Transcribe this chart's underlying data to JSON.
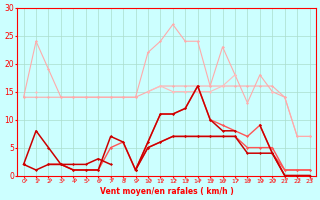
{
  "xlabel": "Vent moyen/en rafales ( km/h )",
  "x": [
    0,
    1,
    2,
    3,
    4,
    5,
    6,
    7,
    8,
    9,
    10,
    11,
    12,
    13,
    14,
    15,
    16,
    17,
    18,
    19,
    20,
    21,
    22,
    23
  ],
  "series": [
    {
      "name": "light_rafales_1",
      "color": "#ffaaaa",
      "lw": 0.8,
      "y": [
        14,
        24,
        19,
        14,
        14,
        14,
        14,
        14,
        14,
        14,
        22,
        24,
        27,
        24,
        24,
        16,
        23,
        18,
        13,
        18,
        15,
        14,
        7,
        7
      ]
    },
    {
      "name": "light_moyen_1",
      "color": "#ffaaaa",
      "lw": 0.8,
      "y": [
        14,
        14,
        14,
        14,
        14,
        14,
        14,
        14,
        14,
        14,
        15,
        16,
        16,
        16,
        16,
        16,
        16,
        16,
        16,
        16,
        16,
        14,
        7,
        7
      ]
    },
    {
      "name": "light_rafales_2",
      "color": "#ffbbbb",
      "lw": 0.8,
      "y": [
        null,
        15,
        null,
        2,
        2,
        null,
        null,
        null,
        null,
        null,
        15,
        16,
        15,
        15,
        15,
        15,
        16,
        18,
        null,
        null,
        15,
        null,
        null,
        null
      ]
    },
    {
      "name": "light_moyen_2",
      "color": "#ffbbbb",
      "lw": 0.8,
      "y": [
        null,
        null,
        null,
        null,
        null,
        null,
        null,
        null,
        null,
        null,
        null,
        null,
        null,
        null,
        null,
        null,
        null,
        null,
        null,
        null,
        null,
        null,
        null,
        null
      ]
    },
    {
      "name": "med_rafales",
      "color": "#ff6666",
      "lw": 1.0,
      "y": [
        2,
        null,
        2,
        2,
        1,
        1,
        1,
        null,
        null,
        1,
        6,
        11,
        11,
        12,
        16,
        10,
        9,
        8,
        7,
        9,
        4,
        1,
        1,
        1
      ]
    },
    {
      "name": "med_moyen",
      "color": "#ff6666",
      "lw": 1.0,
      "y": [
        2,
        null,
        2,
        2,
        1,
        1,
        1,
        5,
        6,
        1,
        5,
        6,
        7,
        7,
        7,
        7,
        7,
        7,
        5,
        5,
        5,
        1,
        1,
        1
      ]
    },
    {
      "name": "dark_rafales",
      "color": "#dd0000",
      "lw": 1.1,
      "y": [
        2,
        8,
        5,
        2,
        2,
        2,
        3,
        2,
        null,
        1,
        6,
        11,
        11,
        12,
        16,
        10,
        8,
        8,
        null,
        9,
        4,
        0,
        0,
        0
      ]
    },
    {
      "name": "dark_moyen",
      "color": "#cc0000",
      "lw": 1.1,
      "y": [
        2,
        1,
        2,
        2,
        1,
        1,
        1,
        7,
        6,
        1,
        5,
        6,
        7,
        7,
        7,
        7,
        7,
        7,
        4,
        4,
        4,
        0,
        0,
        0
      ]
    }
  ],
  "ylim": [
    0,
    30
  ],
  "yticks": [
    0,
    5,
    10,
    15,
    20,
    25,
    30
  ],
  "bg_color": "#ccffff",
  "grid_color": "#aaddcc",
  "spine_color": "#ff0000",
  "tick_color": "#ff0000",
  "label_color": "#ff0000"
}
